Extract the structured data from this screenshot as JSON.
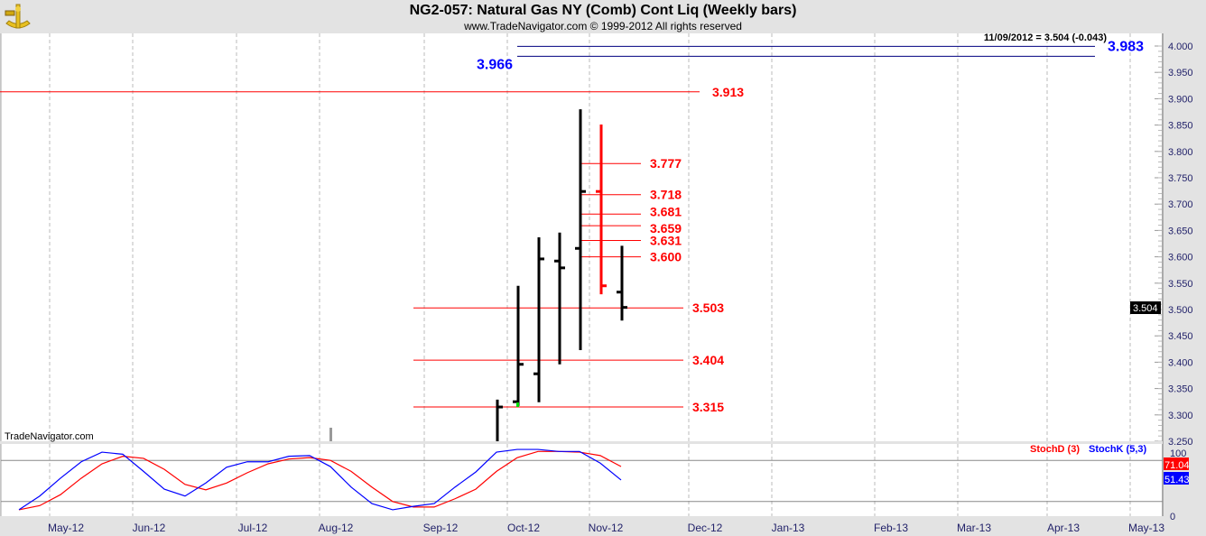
{
  "header": {
    "title": "NG2-057:  Natural Gas NY (Comb) Cont Liq  (Weekly bars)",
    "subtitle": "www.TradeNavigator.com © 1999-2012 All rights reserved",
    "watermark": "TradeNavigator.com"
  },
  "chart_data": [
    {
      "type": "ohlc",
      "title": "NG2-057:  Natural Gas NY (Comb) Cont Liq  (Weekly bars)",
      "readout": "11/09/2012 = 3.504 (-0.043)",
      "last_price_label": "3.504",
      "ylim": [
        3.25,
        4.0
      ],
      "y_ticks": [
        "3.250",
        "3.300",
        "3.350",
        "3.400",
        "3.450",
        "3.500",
        "3.550",
        "3.600",
        "3.650",
        "3.700",
        "3.750",
        "3.800",
        "3.850",
        "3.900",
        "3.950",
        "4.000"
      ],
      "grid": "vertical dashed",
      "bars": [
        {
          "open": null,
          "high": 3.329,
          "low": 3.25,
          "close": 3.315,
          "color": "#000000"
        },
        {
          "open": 3.325,
          "high": 3.545,
          "low": 3.317,
          "close": 3.396,
          "color": "#000000"
        },
        {
          "open": 3.378,
          "high": 3.637,
          "low": 3.324,
          "close": 3.596,
          "color": "#000000"
        },
        {
          "open": 3.592,
          "high": 3.646,
          "low": 3.396,
          "close": 3.579,
          "color": "#000000"
        },
        {
          "open": 3.616,
          "high": 3.88,
          "low": 3.423,
          "close": 3.724,
          "color": "#000000"
        },
        {
          "open": 3.724,
          "high": 3.851,
          "low": 3.529,
          "close": 3.545,
          "color": "#ff0000"
        },
        {
          "open": 3.533,
          "high": 3.621,
          "low": 3.479,
          "close": 3.504,
          "color": "#000000"
        }
      ],
      "levels": [
        {
          "value": 3.913,
          "label": "3.913",
          "color": "#ff0000",
          "group": "wide"
        },
        {
          "value": 3.777,
          "label": "3.777",
          "color": "#ff0000",
          "group": "short"
        },
        {
          "value": 3.718,
          "label": "3.718",
          "color": "#ff0000",
          "group": "short"
        },
        {
          "value": 3.681,
          "label": "3.681",
          "color": "#ff0000",
          "group": "short"
        },
        {
          "value": 3.659,
          "label": "3.659",
          "color": "#ff0000",
          "group": "short"
        },
        {
          "value": 3.631,
          "label": "3.631",
          "color": "#ff0000",
          "group": "short"
        },
        {
          "value": 3.6,
          "label": "3.600",
          "color": "#ff0000",
          "group": "short"
        },
        {
          "value": 3.503,
          "label": "3.503",
          "color": "#ff0000",
          "group": "mid"
        },
        {
          "value": 3.404,
          "label": "3.404",
          "color": "#ff0000",
          "group": "mid"
        },
        {
          "value": 3.315,
          "label": "3.315",
          "color": "#ff0000",
          "group": "mid"
        },
        {
          "value": 3.983,
          "label": "3.983",
          "color": "#0000ff",
          "group": "blue-right"
        },
        {
          "value": 3.966,
          "label": "3.966",
          "color": "#0000ff",
          "group": "blue-left"
        }
      ]
    },
    {
      "type": "line",
      "ylim": [
        0,
        100
      ],
      "y_ticks": [
        "0",
        "100"
      ],
      "reference_lines": [
        20,
        80
      ],
      "x_ticks": [
        "May-12",
        "Jun-12",
        "Jul-12",
        "Aug-12",
        "Sep-12",
        "Oct-12",
        "Nov-12",
        "Dec-12",
        "Jan-13",
        "Feb-13",
        "Mar-13",
        "Apr-13",
        "May-13"
      ],
      "series": [
        {
          "name": "StochD (3)",
          "color": "#ff0000",
          "last_label": "71.04",
          "values": [
            8,
            14,
            30,
            54,
            75,
            86,
            83,
            67,
            45,
            37,
            47,
            62,
            75,
            82,
            84,
            80,
            64,
            41,
            20,
            12,
            12,
            24,
            38,
            64,
            84,
            93,
            93,
            92,
            87,
            71.04
          ]
        },
        {
          "name": "StochK (5,3)",
          "color": "#0000ff",
          "last_label": "51.43",
          "values": [
            8,
            28,
            54,
            78,
            92,
            89,
            64,
            38,
            28,
            47,
            70,
            78,
            78,
            86,
            87,
            71,
            41,
            17,
            8,
            13,
            17,
            41,
            63,
            92,
            96,
            96,
            93,
            93,
            76,
            51.43
          ]
        }
      ]
    }
  ]
}
